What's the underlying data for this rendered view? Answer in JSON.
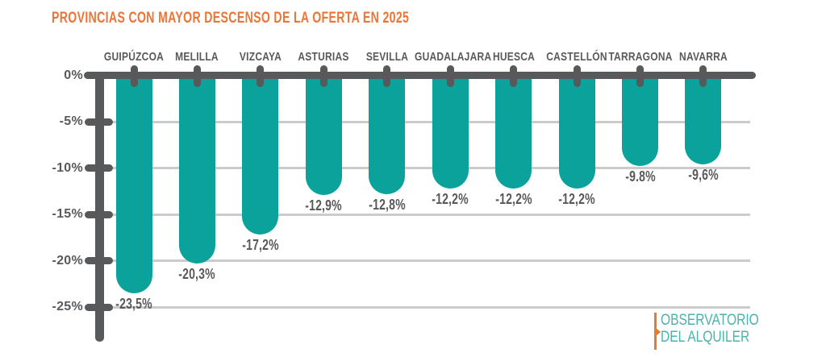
{
  "title": "PROVINCIAS CON MAYOR DESCENSO DE LA OFERTA EN 2025",
  "chart_data": {
    "type": "bar",
    "orientation": "vertical-negative",
    "title": "PROVINCIAS CON MAYOR DESCENSO DE LA OFERTA EN 2025",
    "categories": [
      "GUIPÚZCOA",
      "MELILLA",
      "VIZCAYA",
      "ASTURIAS",
      "SEVILLA",
      "GUADALAJARA",
      "HUESCA",
      "CASTELLÓN",
      "TARRAGONA",
      "NAVARRA"
    ],
    "values": [
      -23.5,
      -20.3,
      -17.2,
      -12.9,
      -12.8,
      -12.2,
      -12.2,
      -12.2,
      -9.8,
      -9.6
    ],
    "value_labels": [
      "-23,5%",
      "-20,3%",
      "-17,2%",
      "-12,9%",
      "-12,8%",
      "-12,2%",
      "-12,2%",
      "-12,2%",
      "-9.8%",
      "-9,6%"
    ],
    "xlabel": "",
    "ylabel": "",
    "ylim": [
      -25,
      0
    ],
    "y_tick_labels": [
      "0%",
      "-5%",
      "-10%",
      "-15%",
      "-20%",
      "-25%"
    ],
    "y_tick_values": [
      0,
      -5,
      -10,
      -15,
      -20,
      -25
    ],
    "grid": true,
    "legend": false
  },
  "colors": {
    "bar": "#0aa29b",
    "axis": "#58595b",
    "gridline": "#cbcbcb",
    "title": "#ee7435",
    "tick_text": "#58595b",
    "label_text": "#58595b",
    "logo_teal": "#4bb2ac",
    "logo_orange": "#e87a2c",
    "background": "#ffffff"
  },
  "logo": {
    "line1": "OBSERVATORIO",
    "line2": "DEL ALQUILER"
  }
}
